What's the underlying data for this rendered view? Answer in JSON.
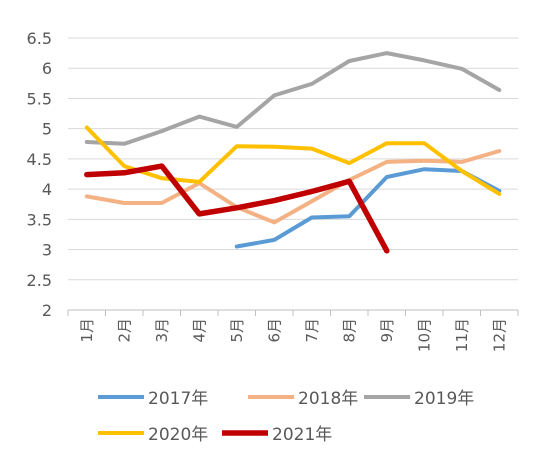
{
  "chart_data": {
    "type": "line",
    "title": "",
    "xlabel": "",
    "ylabel": "",
    "categories": [
      "1月",
      "2月",
      "3月",
      "4月",
      "5月",
      "6月",
      "7月",
      "8月",
      "9月",
      "10月",
      "11月",
      "12月"
    ],
    "ylim": [
      2,
      6.5
    ],
    "yticks": [
      "6.5",
      "6",
      "5.5",
      "5",
      "4.5",
      "4",
      "3.5",
      "3",
      "2.5",
      "2"
    ],
    "grid": true,
    "legend_position": "bottom",
    "series": [
      {
        "name": "2017年",
        "color": "#5B9BD5",
        "values": [
          null,
          null,
          null,
          null,
          3.05,
          3.16,
          3.53,
          3.55,
          4.2,
          4.33,
          4.3,
          3.97
        ]
      },
      {
        "name": "2018年",
        "color": "#F4B183",
        "values": [
          3.88,
          3.77,
          3.77,
          4.1,
          3.7,
          3.45,
          3.8,
          4.15,
          4.45,
          4.47,
          4.45,
          4.63
        ]
      },
      {
        "name": "2019年",
        "color": "#A5A5A5",
        "values": [
          4.78,
          4.75,
          4.96,
          5.2,
          5.03,
          5.55,
          5.74,
          6.12,
          6.25,
          6.13,
          5.99,
          5.64
        ]
      },
      {
        "name": "2020年",
        "color": "#FFC000",
        "values": [
          5.02,
          4.38,
          4.18,
          4.12,
          4.71,
          4.7,
          4.67,
          4.43,
          4.76,
          4.76,
          4.3,
          3.92
        ]
      },
      {
        "name": "2021年",
        "color": "#C00000",
        "values": [
          4.24,
          4.27,
          4.38,
          3.59,
          3.69,
          3.81,
          3.96,
          4.13,
          2.98,
          null,
          null,
          null
        ]
      }
    ]
  }
}
